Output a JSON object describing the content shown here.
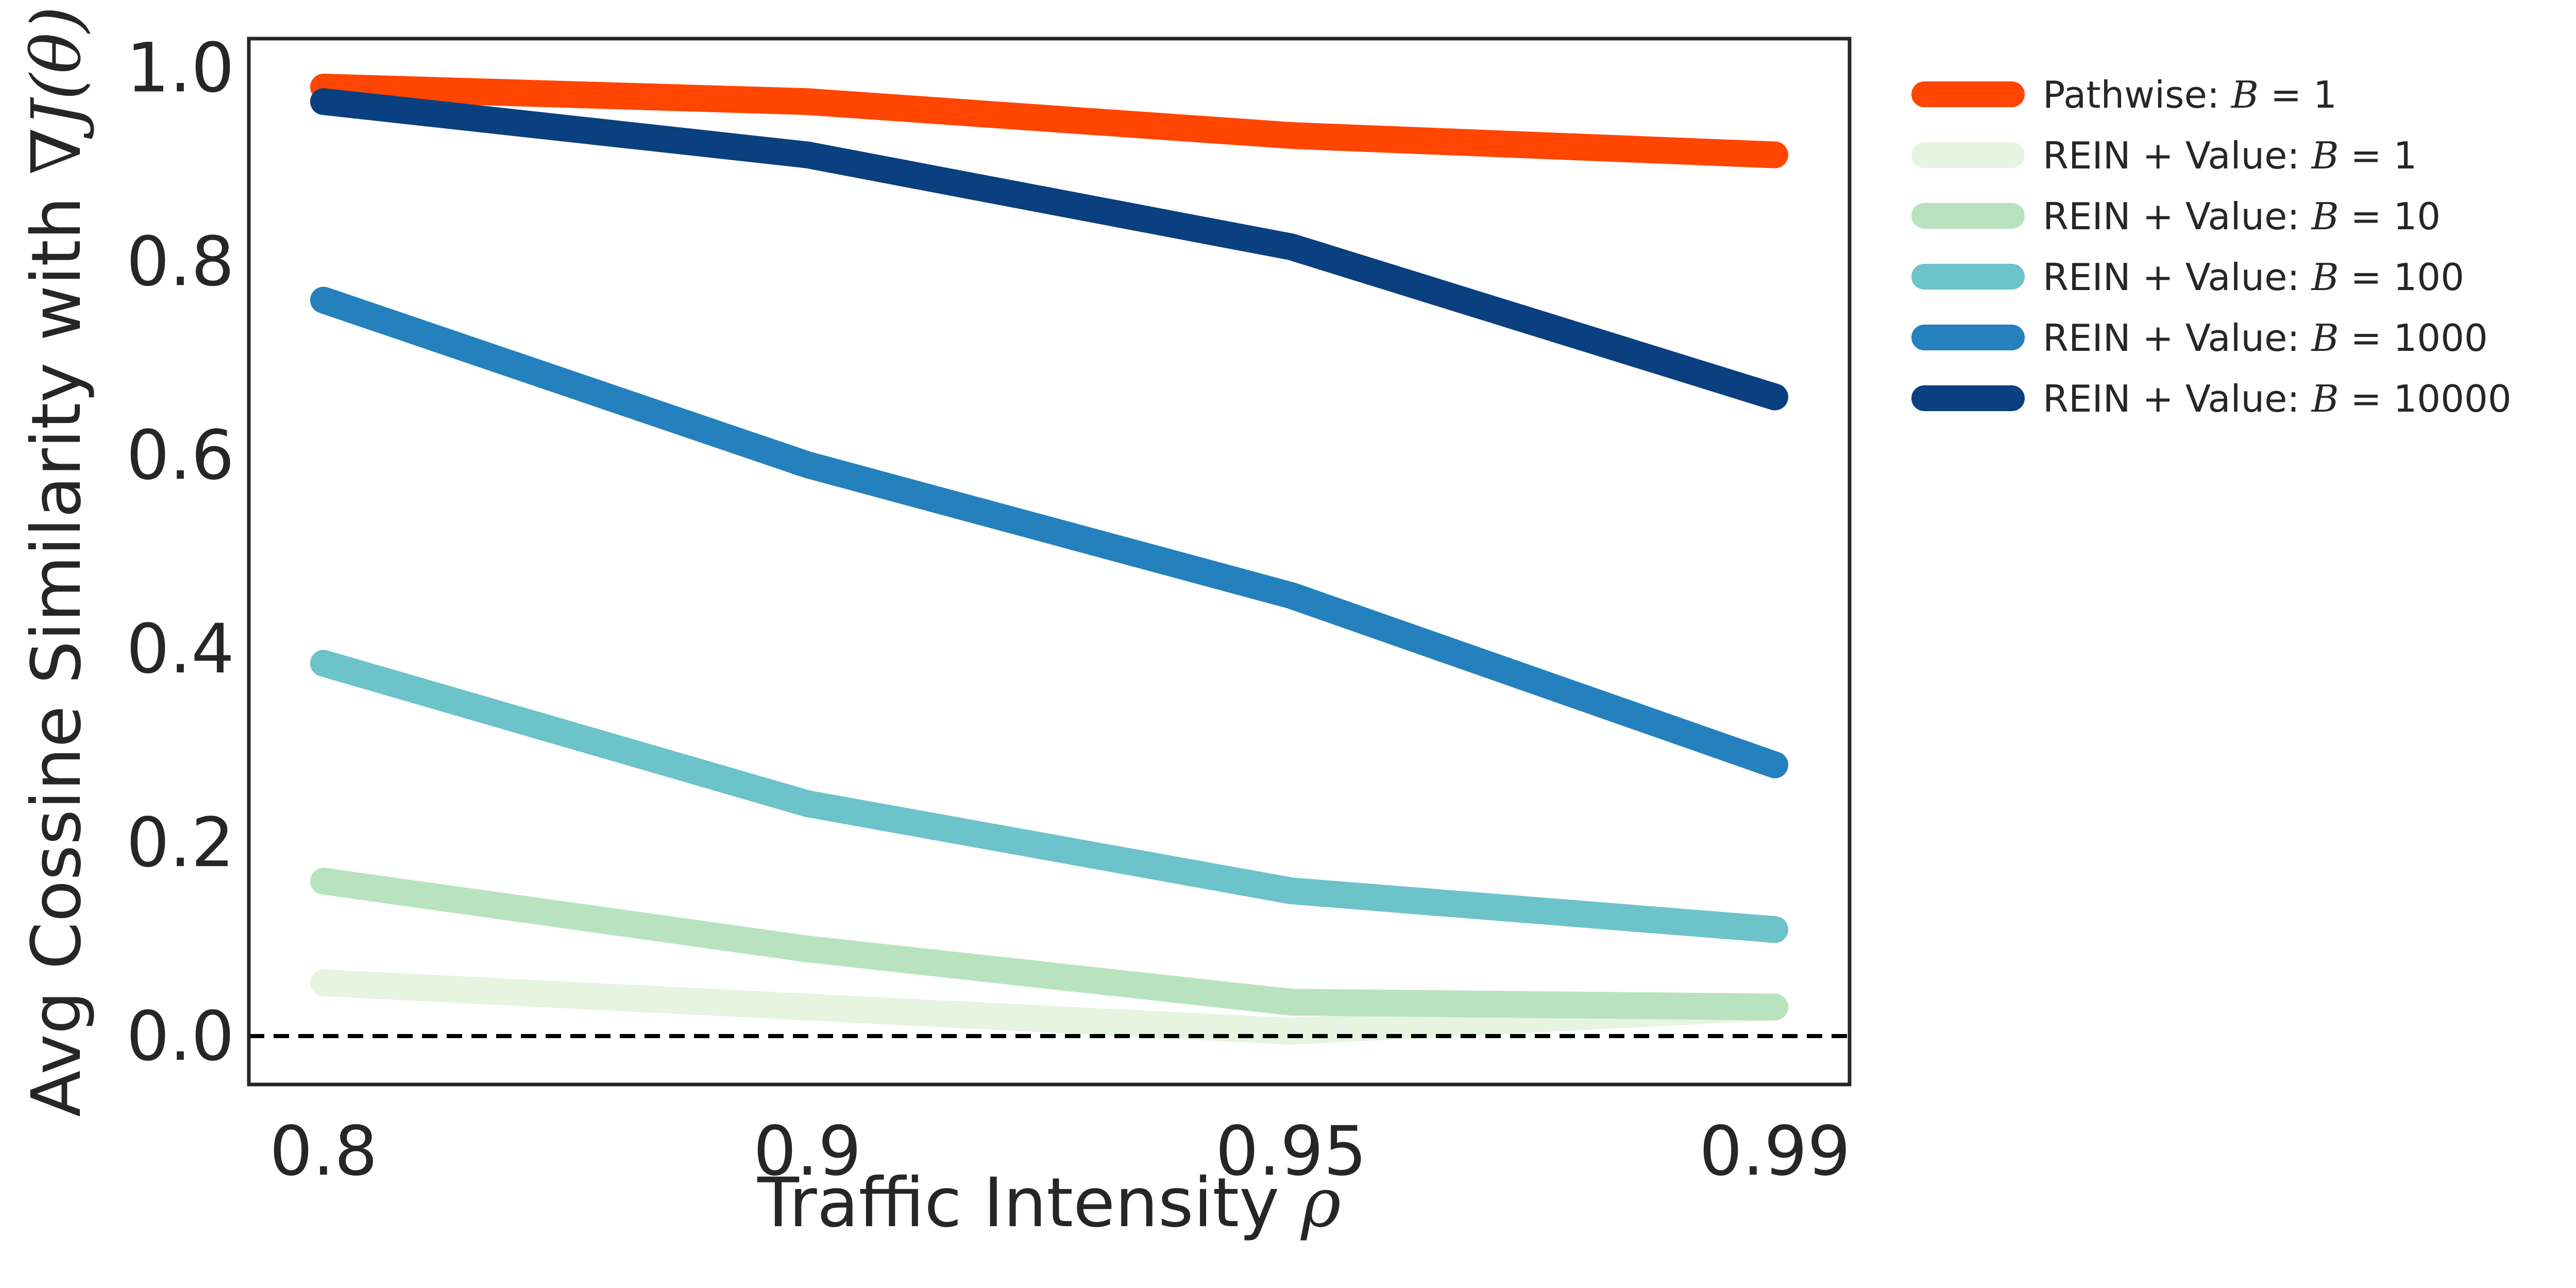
{
  "chart_data": {
    "type": "line",
    "title": "",
    "xlabel": "Traffic Intensity",
    "xlabel_symbol": "ρ",
    "ylabel": "Avg Cossine Similarity with",
    "ylabel_symbol": "∇J(θ)",
    "categories": [
      "0.8",
      "0.9",
      "0.95",
      "0.99"
    ],
    "ylim": [
      -0.05,
      1.03
    ],
    "yticks": [
      "0.0",
      "0.2",
      "0.4",
      "0.6",
      "0.8",
      "1.0"
    ],
    "ytick_values": [
      0.0,
      0.2,
      0.4,
      0.6,
      0.8,
      1.0
    ],
    "reference_line": {
      "y": 0.0,
      "style": "dashed",
      "color": "#000000"
    },
    "legend_position": "outside-right-top",
    "series": [
      {
        "name": "Pathwise:",
        "b_value": "1",
        "color": "#FF4500",
        "values": [
          0.98,
          0.965,
          0.93,
          0.91
        ]
      },
      {
        "name": "REIN + Value:",
        "b_value": "1",
        "color": "#E5F5E0",
        "values": [
          0.055,
          0.03,
          0.005,
          0.03
        ]
      },
      {
        "name": "REIN + Value:",
        "b_value": "10",
        "color": "#B8E3BE",
        "values": [
          0.16,
          0.09,
          0.035,
          0.03
        ]
      },
      {
        "name": "REIN + Value:",
        "b_value": "100",
        "color": "#6CC3C9",
        "values": [
          0.385,
          0.24,
          0.15,
          0.11
        ]
      },
      {
        "name": "REIN + Value:",
        "b_value": "1000",
        "color": "#2481BD",
        "values": [
          0.76,
          0.59,
          0.455,
          0.28
        ]
      },
      {
        "name": "REIN + Value:",
        "b_value": "10000",
        "color": "#0A3F80",
        "values": [
          0.965,
          0.91,
          0.815,
          0.66
        ]
      }
    ]
  }
}
